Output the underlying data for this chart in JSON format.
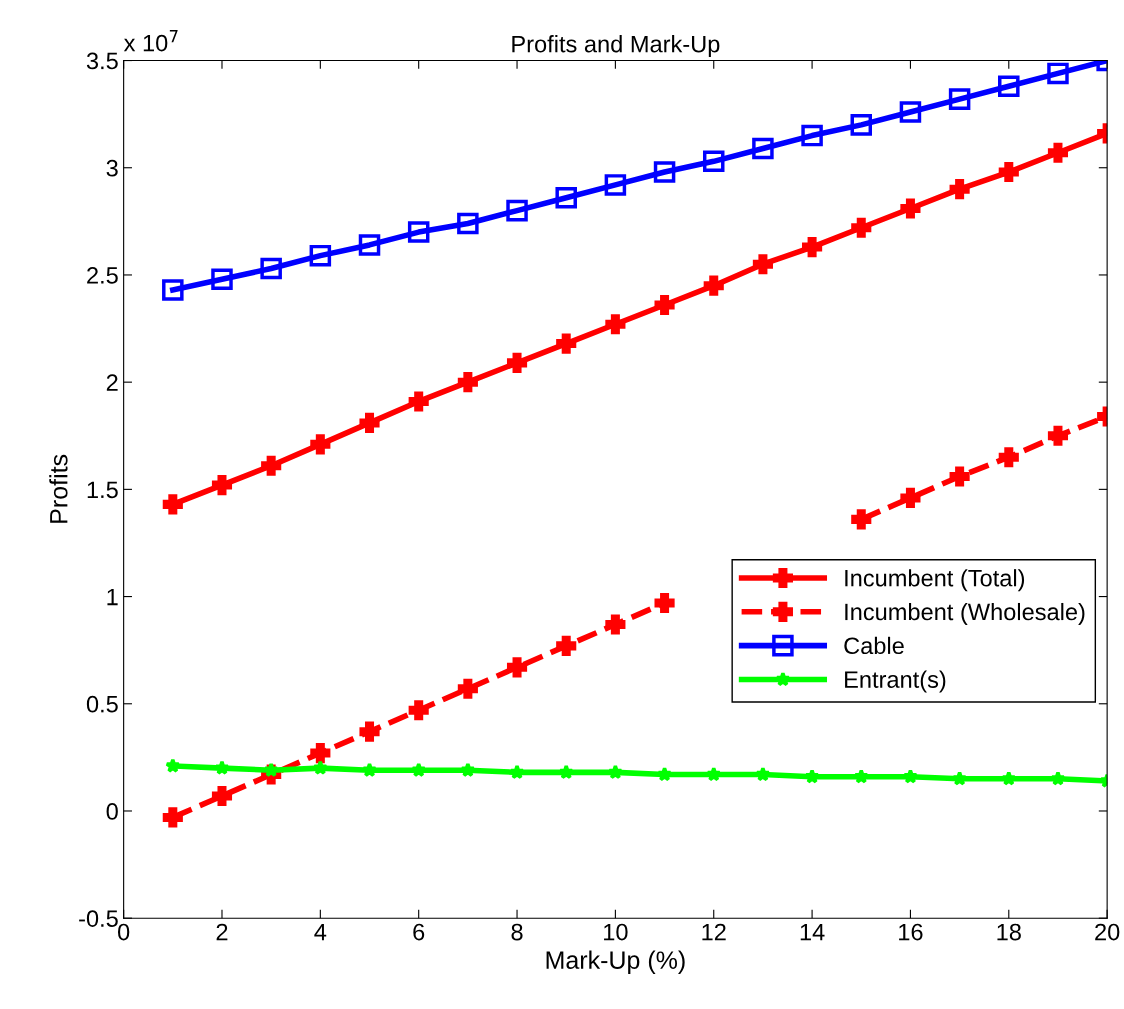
{
  "chart_data": {
    "type": "line",
    "title": "Profits and Mark-Up",
    "xlabel": "Mark-Up (%)",
    "ylabel": "Profits",
    "annotations": [
      "x 10$^{7}$"
    ],
    "x": [
      1,
      2,
      3,
      4,
      5,
      6,
      7,
      8,
      9,
      10,
      11,
      12,
      13,
      14,
      15,
      16,
      17,
      18,
      19,
      20
    ],
    "series": [
      {
        "name": "Incumbent (Total)",
        "color": "#ff0000",
        "marker": "cross",
        "line_style": "solid",
        "values": [
          1.43,
          1.52,
          1.61,
          1.71,
          1.81,
          1.91,
          2.0,
          2.09,
          2.18,
          2.27,
          2.36,
          2.45,
          2.55,
          2.63,
          2.72,
          2.81,
          2.9,
          2.98,
          3.07,
          3.16
        ]
      },
      {
        "name": "Incumbent (Wholesale)",
        "color": "#ff0000",
        "marker": "cross",
        "line_style": "dashed",
        "values": [
          -0.03,
          0.07,
          0.17,
          0.27,
          0.37,
          0.47,
          0.57,
          0.67,
          0.77,
          0.87,
          0.97,
          null,
          null,
          null,
          1.36,
          1.46,
          1.56,
          1.65,
          1.75,
          1.84
        ]
      },
      {
        "name": "Cable",
        "color": "#0000ff",
        "marker": "square",
        "line_style": "solid",
        "values": [
          2.43,
          2.48,
          2.53,
          2.59,
          2.64,
          2.7,
          2.74,
          2.8,
          2.86,
          2.92,
          2.98,
          3.03,
          3.09,
          3.15,
          3.2,
          3.26,
          3.32,
          3.38,
          3.44,
          3.5
        ]
      },
      {
        "name": "Entrant(s)",
        "color": "#00ff00",
        "marker": "star",
        "line_style": "solid",
        "values": [
          0.21,
          0.2,
          0.19,
          0.2,
          0.19,
          0.19,
          0.19,
          0.18,
          0.18,
          0.18,
          0.17,
          0.17,
          0.17,
          0.16,
          0.16,
          0.16,
          0.15,
          0.15,
          0.15,
          0.14
        ]
      }
    ],
    "xlim": [
      0,
      20
    ],
    "xticks": [
      0,
      2,
      4,
      6,
      8,
      10,
      12,
      14,
      16,
      18,
      20
    ],
    "ylim": [
      -0.5,
      3.5
    ],
    "yticks": [
      -0.5,
      0,
      0.5,
      1,
      1.5,
      2,
      2.5,
      3,
      3.5
    ],
    "grid": false,
    "legend": "right"
  }
}
